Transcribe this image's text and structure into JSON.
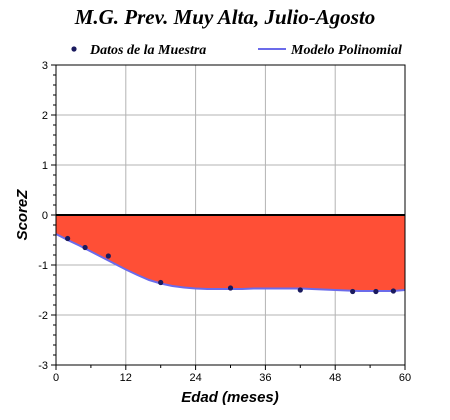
{
  "chart_data": {
    "type": "area",
    "title": "M.G. Prev. Muy Alta, Julio-Agosto",
    "xlabel": "Edad (meses)",
    "ylabel": "ScoreZ",
    "xlim": [
      0,
      60
    ],
    "ylim": [
      -3,
      3
    ],
    "x_ticks": [
      "0",
      "12",
      "24",
      "36",
      "48",
      "60"
    ],
    "y_ticks": [
      "-3",
      "-2",
      "-1",
      "0",
      "1",
      "2",
      "3"
    ],
    "grid": true,
    "legend_position": "top",
    "series": [
      {
        "name": "Datos de la Muestra",
        "kind": "scatter",
        "color": "#1a1a5e",
        "x": [
          2,
          5,
          9,
          18,
          30,
          42,
          51,
          55,
          58
        ],
        "y": [
          -0.47,
          -0.65,
          -0.82,
          -1.35,
          -1.46,
          -1.5,
          -1.53,
          -1.53,
          -1.52
        ]
      },
      {
        "name": "Modelo Polinomial",
        "kind": "line",
        "color": "#6b6bea",
        "x": [
          0,
          2,
          4,
          6,
          8,
          10,
          12,
          14,
          16,
          18,
          20,
          22,
          24,
          26,
          28,
          30,
          32,
          34,
          36,
          38,
          40,
          42,
          44,
          46,
          48,
          50,
          52,
          54,
          56,
          58,
          60
        ],
        "y": [
          -0.38,
          -0.5,
          -0.61,
          -0.73,
          -0.85,
          -0.97,
          -1.09,
          -1.2,
          -1.3,
          -1.37,
          -1.42,
          -1.45,
          -1.47,
          -1.48,
          -1.48,
          -1.48,
          -1.48,
          -1.47,
          -1.47,
          -1.47,
          -1.47,
          -1.47,
          -1.48,
          -1.49,
          -1.5,
          -1.51,
          -1.52,
          -1.52,
          -1.52,
          -1.52,
          -1.5
        ]
      }
    ],
    "fill": {
      "between": [
        "Modelo Polinomial",
        0
      ],
      "color": "#ff4f36"
    }
  }
}
